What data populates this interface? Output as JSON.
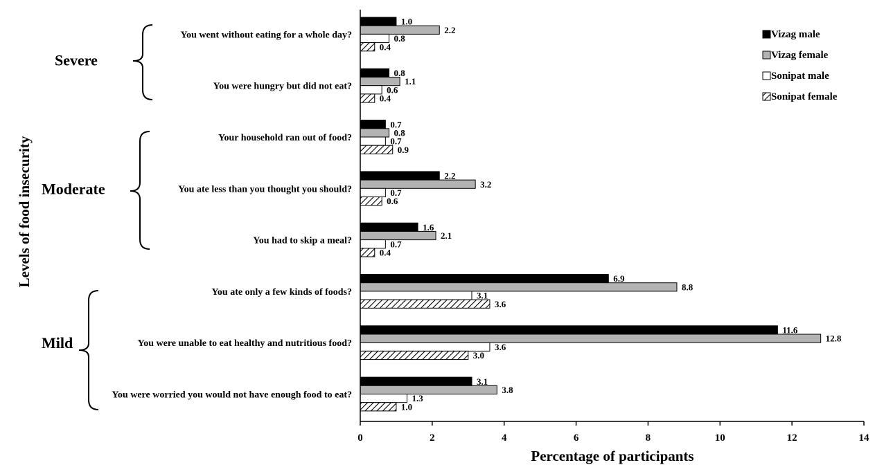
{
  "chart_data": {
    "type": "bar",
    "orientation": "horizontal",
    "xlabel": "Percentage of participants",
    "ylabel": "Levels of food insecurity",
    "xlim": [
      0,
      14
    ],
    "xticks": [
      0,
      2,
      4,
      6,
      8,
      10,
      12,
      14
    ],
    "grid": false,
    "legend_position": "top-right",
    "categories": [
      "You went without eating for a whole day?",
      "You were hungry but did not eat?",
      "Your household ran out of food?",
      "You ate less than you thought you should?",
      "You had to skip a meal?",
      "You ate only a few kinds of foods?",
      "You were unable to eat healthy and nutritious food?",
      "You were worried you would not have enough food to eat?"
    ],
    "series": [
      {
        "name": "Vizag male",
        "fill": "#000000",
        "values": [
          1.0,
          0.8,
          0.7,
          2.2,
          1.6,
          6.9,
          11.6,
          3.1
        ],
        "labels": [
          "1.0",
          "0.8",
          "0.7",
          "2.2",
          "1.6",
          "6.9",
          "11.6",
          "3.1"
        ]
      },
      {
        "name": "Vizag female",
        "fill": "#b3b3b3",
        "values": [
          2.2,
          1.1,
          0.8,
          3.2,
          2.1,
          8.8,
          12.8,
          3.8
        ],
        "labels": [
          "2.2",
          "1.1",
          "0.8",
          "3.2",
          "2.1",
          "8.8",
          "12.8",
          "3.8"
        ]
      },
      {
        "name": "Sonipat male",
        "fill": "#ffffff",
        "values": [
          0.8,
          0.6,
          0.7,
          0.7,
          0.7,
          3.1,
          3.6,
          1.3
        ],
        "labels": [
          "0.8",
          "0.6",
          "0.7",
          "0.7",
          "0.7",
          "3.1",
          "3.6",
          "1.3"
        ]
      },
      {
        "name": "Sonipat female",
        "fill": "hatch",
        "values": [
          0.4,
          0.4,
          0.9,
          0.6,
          0.4,
          3.6,
          3.0,
          1.0
        ],
        "labels": [
          "0.4",
          "0.4",
          "0.9",
          "0.6",
          "0.4",
          "3.6",
          "3.0",
          "1.0"
        ]
      }
    ],
    "groups": [
      {
        "label": "Severe",
        "categories": [
          0,
          1
        ]
      },
      {
        "label": "Moderate",
        "categories": [
          2,
          3,
          4
        ]
      },
      {
        "label": "Mild",
        "categories": [
          5,
          6,
          7
        ]
      }
    ]
  }
}
